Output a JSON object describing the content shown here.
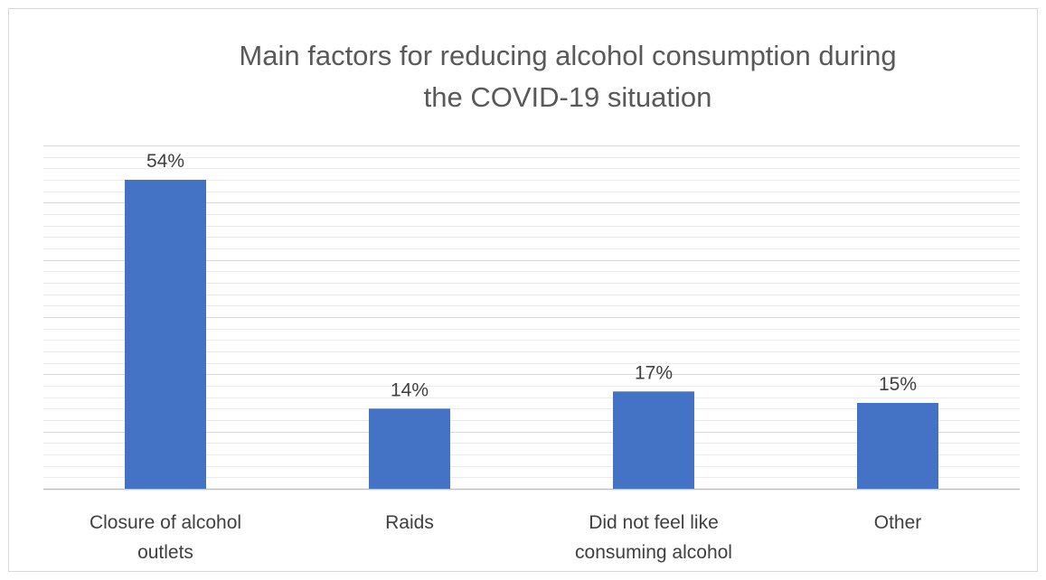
{
  "chart_data": {
    "type": "bar",
    "title": "Main factors for reducing alcohol consumption during the COVID-19 situation",
    "title_lines": [
      "Main factors for reducing alcohol consumption during",
      "the COVID-19 situation"
    ],
    "categories": [
      [
        "Closure of alcohol",
        "outlets"
      ],
      [
        "Raids"
      ],
      [
        "Did not feel like",
        "consuming alcohol"
      ],
      [
        "Other"
      ]
    ],
    "values": [
      54,
      14,
      17,
      15
    ],
    "data_labels": [
      "54%",
      "14%",
      "17%",
      "15%"
    ],
    "ylim": [
      0,
      60
    ],
    "grid": true,
    "legend": "none",
    "colors": {
      "bar": "#4472C4",
      "grid": "#d9d9d9",
      "axis": "#bfbfbf",
      "text": "#404040",
      "title": "#595959"
    }
  }
}
